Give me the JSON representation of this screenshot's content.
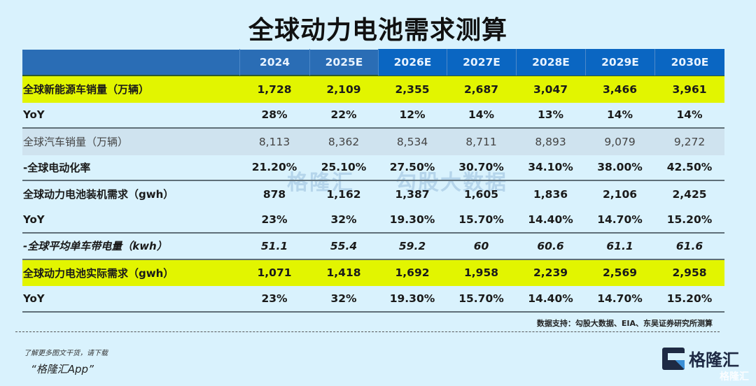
{
  "title": "全球动力电池需求测算",
  "table": {
    "headers": [
      "2024",
      "2025E",
      "2026E",
      "2027E",
      "2028E",
      "2029E",
      "2030E"
    ],
    "rows": [
      {
        "label": "全球新能源车销量（万辆）",
        "values": [
          "1,728",
          "2,109",
          "2,355",
          "2,687",
          "3,047",
          "3,466",
          "3,961"
        ]
      },
      {
        "label": "YoY",
        "values": [
          "28%",
          "22%",
          "12%",
          "14%",
          "13%",
          "14%",
          "14%"
        ]
      },
      {
        "label": "全球汽车销量（万辆）",
        "values": [
          "8,113",
          "8,362",
          "8,534",
          "8,711",
          "8,893",
          "9,079",
          "9,272"
        ]
      },
      {
        "label": "-全球电动化率",
        "values": [
          "21.20%",
          "25.10%",
          "27.50%",
          "30.70%",
          "34.10%",
          "38.00%",
          "42.50%"
        ]
      },
      {
        "label": "全球动力电池装机需求（gwh）",
        "values": [
          "878",
          "1,162",
          "1,387",
          "1,605",
          "1,836",
          "2,106",
          "2,425"
        ]
      },
      {
        "label": "YoY",
        "values": [
          "23%",
          "32%",
          "19.30%",
          "15.70%",
          "14.40%",
          "14.70%",
          "15.20%"
        ]
      },
      {
        "label": "-全球平均单车带电量（kwh）",
        "values": [
          "51.1",
          "55.4",
          "59.2",
          "60",
          "60.6",
          "61.1",
          "61.6"
        ]
      },
      {
        "label": "全球动力电池实际需求（gwh）",
        "values": [
          "1,071",
          "1,418",
          "1,692",
          "1,958",
          "2,239",
          "2,569",
          "2,958"
        ]
      },
      {
        "label": "YoY",
        "values": [
          "23%",
          "32%",
          "19.30%",
          "15.70%",
          "14.40%",
          "14.70%",
          "15.20%"
        ]
      }
    ]
  },
  "source": "数据支持：勾股大数据、EIA、东吴证券研究所测算",
  "watermark": {
    "left": "格隆汇",
    "right": "勾股大数据"
  },
  "promo": {
    "line1": "了解更多图文干货，请下载",
    "line2": "“格隆汇App”"
  },
  "logo": {
    "text": "格隆汇",
    "corner": "格隆汇"
  },
  "colors": {
    "header_blue": "#2a6db5",
    "header_blue_dark": "#0a66c2",
    "highlight_yellow": "#e2f500",
    "background": "#d9f2fd"
  },
  "chart_data": {
    "type": "table",
    "title": "全球动力电池需求测算",
    "columns": [
      "2024",
      "2025E",
      "2026E",
      "2027E",
      "2028E",
      "2029E",
      "2030E"
    ],
    "rows": [
      {
        "name": "全球新能源车销量（万辆）",
        "values": [
          1728,
          2109,
          2355,
          2687,
          3047,
          3466,
          3961
        ]
      },
      {
        "name": "YoY",
        "values": [
          "28%",
          "22%",
          "12%",
          "14%",
          "13%",
          "14%",
          "14%"
        ]
      },
      {
        "name": "全球汽车销量（万辆）",
        "values": [
          8113,
          8362,
          8534,
          8711,
          8893,
          9079,
          9272
        ]
      },
      {
        "name": "-全球电动化率",
        "values": [
          "21.20%",
          "25.10%",
          "27.50%",
          "30.70%",
          "34.10%",
          "38.00%",
          "42.50%"
        ]
      },
      {
        "name": "全球动力电池装机需求（gwh）",
        "values": [
          878,
          1162,
          1387,
          1605,
          1836,
          2106,
          2425
        ]
      },
      {
        "name": "YoY",
        "values": [
          "23%",
          "32%",
          "19.30%",
          "15.70%",
          "14.40%",
          "14.70%",
          "15.20%"
        ]
      },
      {
        "name": "-全球平均单车带电量（kwh）",
        "values": [
          51.1,
          55.4,
          59.2,
          60,
          60.6,
          61.1,
          61.6
        ]
      },
      {
        "name": "全球动力电池实际需求（gwh）",
        "values": [
          1071,
          1418,
          1692,
          1958,
          2239,
          2569,
          2958
        ]
      },
      {
        "name": "YoY",
        "values": [
          "23%",
          "32%",
          "19.30%",
          "15.70%",
          "14.40%",
          "14.70%",
          "15.20%"
        ]
      }
    ],
    "source": "数据支持：勾股大数据、EIA、东吴证券研究所测算"
  }
}
